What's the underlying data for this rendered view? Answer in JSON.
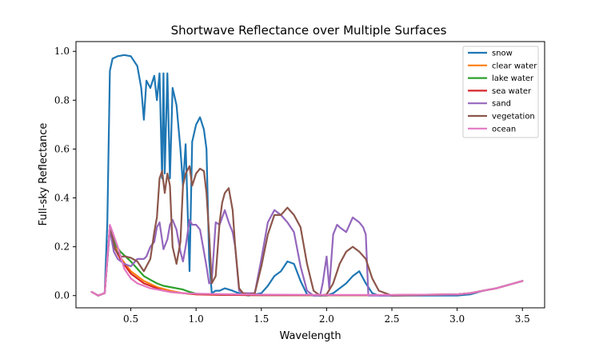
{
  "chart_data": {
    "type": "line",
    "title": "Shortwave Reflectance over Multiple Surfaces",
    "xlabel": "Wavelength",
    "ylabel": "Full-sky Reflectance",
    "xlim": [
      0.08,
      3.67
    ],
    "ylim": [
      -0.05,
      1.04
    ],
    "xticks": [
      0.5,
      1.0,
      1.5,
      2.0,
      2.5,
      3.0,
      3.5
    ],
    "xtick_labels": [
      "0.5",
      "1.0",
      "1.5",
      "2.0",
      "2.5",
      "3.0",
      "3.5"
    ],
    "yticks": [
      0.0,
      0.2,
      0.4,
      0.6,
      0.8,
      1.0
    ],
    "ytick_labels": [
      "0.0",
      "0.2",
      "0.4",
      "0.6",
      "0.8",
      "1.0"
    ],
    "grid": false,
    "legend_position": "top-right",
    "series": [
      {
        "name": "snow",
        "color": "#1f77b4",
        "x": [
          0.2,
          0.25,
          0.3,
          0.32,
          0.34,
          0.36,
          0.4,
          0.45,
          0.5,
          0.55,
          0.58,
          0.6,
          0.62,
          0.65,
          0.68,
          0.7,
          0.72,
          0.74,
          0.75,
          0.76,
          0.78,
          0.8,
          0.82,
          0.85,
          0.88,
          0.9,
          0.92,
          0.95,
          0.97,
          1.0,
          1.03,
          1.06,
          1.08,
          1.1,
          1.12,
          1.15,
          1.18,
          1.2,
          1.22,
          1.25,
          1.28,
          1.3,
          1.33,
          1.36,
          1.4,
          1.45,
          1.5,
          1.55,
          1.6,
          1.65,
          1.7,
          1.75,
          1.8,
          1.85,
          1.9,
          1.95,
          2.0,
          2.05,
          2.1,
          2.15,
          2.2,
          2.25,
          2.3,
          2.35,
          2.4,
          2.5,
          3.0,
          3.1,
          3.2,
          3.3,
          3.4,
          3.5
        ],
        "y": [
          0.015,
          0.0,
          0.01,
          0.3,
          0.92,
          0.97,
          0.98,
          0.985,
          0.98,
          0.94,
          0.85,
          0.72,
          0.88,
          0.85,
          0.9,
          0.8,
          0.91,
          0.48,
          0.91,
          0.5,
          0.91,
          0.48,
          0.85,
          0.78,
          0.6,
          0.45,
          0.62,
          0.1,
          0.63,
          0.7,
          0.73,
          0.68,
          0.6,
          0.15,
          0.01,
          0.02,
          0.02,
          0.025,
          0.03,
          0.025,
          0.02,
          0.015,
          0.01,
          0.005,
          0.0,
          0.005,
          0.01,
          0.04,
          0.08,
          0.1,
          0.14,
          0.13,
          0.06,
          0.005,
          0.0,
          0.0,
          0.0,
          0.01,
          0.03,
          0.05,
          0.08,
          0.1,
          0.05,
          0.01,
          0.0,
          0.0,
          0.0,
          0.005,
          0.02,
          0.03,
          0.045,
          0.06
        ]
      },
      {
        "name": "clear water",
        "color": "#ff7f0e",
        "x": [
          0.2,
          0.25,
          0.3,
          0.34,
          0.4,
          0.5,
          0.6,
          0.7,
          0.8,
          0.9,
          1.0,
          1.2,
          1.5,
          2.0,
          2.5,
          3.0,
          3.1,
          3.2,
          3.3,
          3.4,
          3.5
        ],
        "y": [
          0.015,
          0.0,
          0.01,
          0.285,
          0.17,
          0.1,
          0.06,
          0.035,
          0.02,
          0.01,
          0.005,
          0.003,
          0.002,
          0.002,
          0.002,
          0.005,
          0.01,
          0.02,
          0.03,
          0.045,
          0.06
        ]
      },
      {
        "name": "lake water",
        "color": "#2ca02c",
        "x": [
          0.2,
          0.25,
          0.3,
          0.34,
          0.38,
          0.42,
          0.46,
          0.5,
          0.55,
          0.6,
          0.65,
          0.7,
          0.75,
          0.8,
          0.85,
          0.9,
          0.95,
          1.0,
          1.1,
          1.2,
          1.5,
          2.0,
          2.5,
          3.0,
          3.1,
          3.2,
          3.3,
          3.4,
          3.5
        ],
        "y": [
          0.015,
          0.0,
          0.01,
          0.285,
          0.21,
          0.18,
          0.16,
          0.14,
          0.11,
          0.08,
          0.065,
          0.05,
          0.04,
          0.035,
          0.03,
          0.025,
          0.015,
          0.008,
          0.005,
          0.003,
          0.002,
          0.002,
          0.002,
          0.005,
          0.01,
          0.02,
          0.03,
          0.045,
          0.06
        ]
      },
      {
        "name": "sea water",
        "color": "#d62728",
        "x": [
          0.2,
          0.25,
          0.3,
          0.34,
          0.38,
          0.42,
          0.46,
          0.5,
          0.55,
          0.6,
          0.65,
          0.7,
          0.75,
          0.8,
          0.9,
          1.0,
          1.2,
          1.5,
          2.0,
          2.5,
          3.0,
          3.1,
          3.2,
          3.3,
          3.4,
          3.5
        ],
        "y": [
          0.015,
          0.0,
          0.01,
          0.285,
          0.19,
          0.15,
          0.12,
          0.09,
          0.07,
          0.05,
          0.04,
          0.03,
          0.02,
          0.015,
          0.01,
          0.005,
          0.003,
          0.002,
          0.002,
          0.002,
          0.005,
          0.01,
          0.02,
          0.03,
          0.045,
          0.06
        ]
      },
      {
        "name": "sand",
        "color": "#9467bd",
        "x": [
          0.2,
          0.25,
          0.3,
          0.34,
          0.37,
          0.4,
          0.45,
          0.5,
          0.55,
          0.6,
          0.62,
          0.65,
          0.68,
          0.7,
          0.72,
          0.75,
          0.78,
          0.8,
          0.82,
          0.85,
          0.88,
          0.9,
          0.92,
          0.95,
          0.97,
          1.0,
          1.03,
          1.06,
          1.08,
          1.1,
          1.12,
          1.15,
          1.18,
          1.2,
          1.22,
          1.25,
          1.28,
          1.3,
          1.33,
          1.36,
          1.45,
          1.5,
          1.55,
          1.6,
          1.65,
          1.7,
          1.75,
          1.8,
          1.85,
          1.9,
          1.95,
          1.97,
          2.0,
          2.02,
          2.05,
          2.08,
          2.1,
          2.15,
          2.2,
          2.25,
          2.28,
          2.3,
          2.32,
          2.4,
          2.5,
          3.0,
          3.1,
          3.2,
          3.3,
          3.4,
          3.5
        ],
        "y": [
          0.015,
          0.0,
          0.01,
          0.27,
          0.18,
          0.15,
          0.13,
          0.12,
          0.15,
          0.15,
          0.16,
          0.2,
          0.22,
          0.28,
          0.3,
          0.19,
          0.23,
          0.29,
          0.31,
          0.27,
          0.18,
          0.14,
          0.2,
          0.31,
          0.29,
          0.29,
          0.27,
          0.18,
          0.12,
          0.05,
          0.06,
          0.3,
          0.29,
          0.32,
          0.35,
          0.3,
          0.26,
          0.2,
          0.02,
          0.01,
          0.01,
          0.15,
          0.3,
          0.35,
          0.33,
          0.3,
          0.26,
          0.12,
          0.02,
          0.0,
          0.0,
          0.05,
          0.16,
          0.03,
          0.25,
          0.29,
          0.28,
          0.26,
          0.32,
          0.3,
          0.28,
          0.25,
          0.0,
          0.0,
          0.0,
          0.005,
          0.01,
          0.02,
          0.03,
          0.045,
          0.06
        ]
      },
      {
        "name": "vegetation",
        "color": "#8c564b",
        "x": [
          0.2,
          0.25,
          0.3,
          0.34,
          0.38,
          0.42,
          0.46,
          0.5,
          0.55,
          0.6,
          0.65,
          0.68,
          0.7,
          0.72,
          0.74,
          0.76,
          0.78,
          0.8,
          0.82,
          0.85,
          0.88,
          0.9,
          0.92,
          0.95,
          0.97,
          1.0,
          1.03,
          1.06,
          1.08,
          1.1,
          1.12,
          1.15,
          1.18,
          1.2,
          1.22,
          1.25,
          1.28,
          1.3,
          1.33,
          1.36,
          1.4,
          1.45,
          1.5,
          1.55,
          1.6,
          1.65,
          1.7,
          1.75,
          1.8,
          1.85,
          1.9,
          1.95,
          2.0,
          2.05,
          2.1,
          2.15,
          2.2,
          2.25,
          2.3,
          2.35,
          2.4,
          2.5,
          3.0,
          3.1,
          3.2,
          3.3,
          3.4,
          3.5
        ],
        "y": [
          0.015,
          0.0,
          0.01,
          0.285,
          0.19,
          0.16,
          0.16,
          0.155,
          0.14,
          0.1,
          0.15,
          0.26,
          0.32,
          0.48,
          0.51,
          0.42,
          0.5,
          0.45,
          0.2,
          0.13,
          0.22,
          0.45,
          0.5,
          0.53,
          0.45,
          0.5,
          0.52,
          0.51,
          0.42,
          0.25,
          0.05,
          0.08,
          0.3,
          0.38,
          0.42,
          0.44,
          0.35,
          0.2,
          0.03,
          0.01,
          0.005,
          0.01,
          0.12,
          0.25,
          0.33,
          0.33,
          0.36,
          0.33,
          0.28,
          0.13,
          0.02,
          0.0,
          0.005,
          0.05,
          0.13,
          0.18,
          0.2,
          0.18,
          0.15,
          0.07,
          0.02,
          0.0,
          0.005,
          0.01,
          0.02,
          0.03,
          0.045,
          0.06
        ]
      },
      {
        "name": "ocean",
        "color": "#e377c2",
        "x": [
          0.2,
          0.25,
          0.3,
          0.34,
          0.36,
          0.4,
          0.45,
          0.5,
          0.55,
          0.6,
          0.65,
          0.7,
          0.75,
          0.8,
          0.9,
          1.0,
          1.2,
          1.5,
          2.0,
          2.5,
          3.0,
          3.1,
          3.2,
          3.3,
          3.4,
          3.5
        ],
        "y": [
          0.015,
          0.0,
          0.01,
          0.29,
          0.26,
          0.2,
          0.11,
          0.07,
          0.05,
          0.04,
          0.03,
          0.025,
          0.02,
          0.015,
          0.01,
          0.008,
          0.006,
          0.004,
          0.003,
          0.003,
          0.005,
          0.01,
          0.02,
          0.03,
          0.045,
          0.06
        ]
      }
    ]
  }
}
